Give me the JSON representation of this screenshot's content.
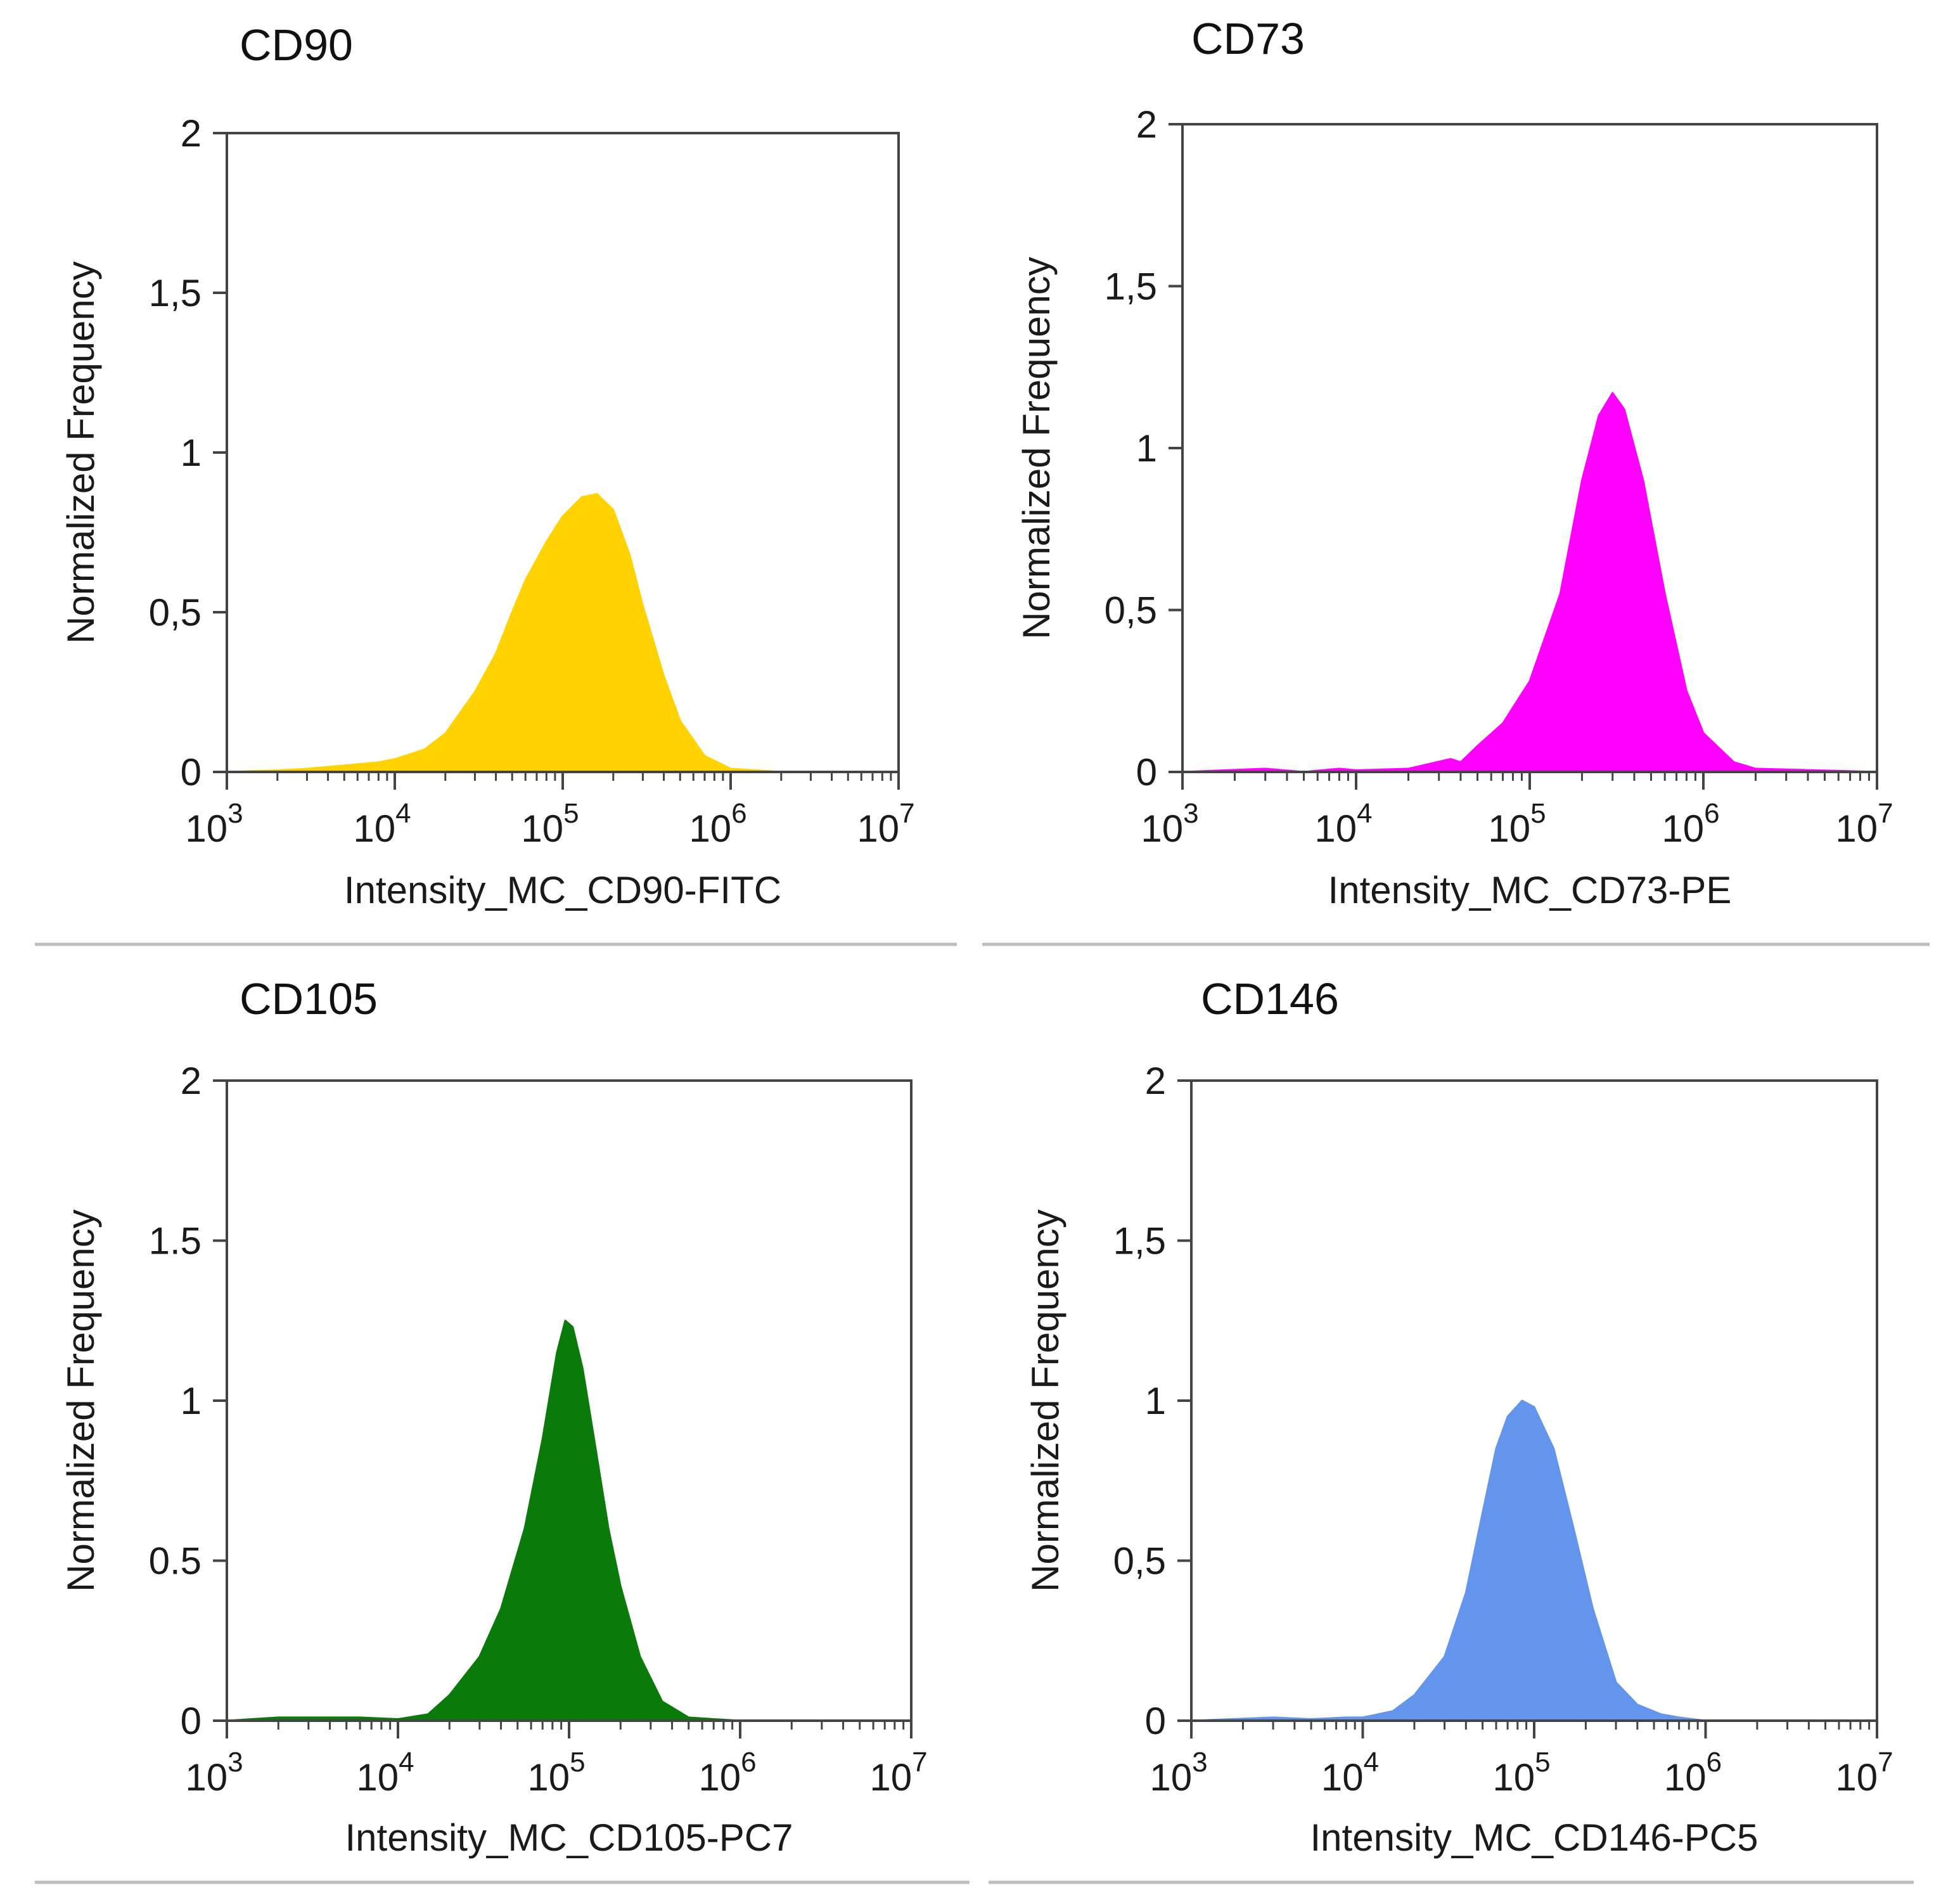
{
  "chart_data": [
    {
      "type": "area",
      "title": "CD90",
      "xlabel": "Intensity_MC_CD90-FITC",
      "ylabel": "Normalized Frequency",
      "x_scale": "log",
      "xlim": [
        1000,
        10000000
      ],
      "ylim": [
        0,
        2
      ],
      "x_ticks": [
        {
          "base": "10",
          "exp": "3"
        },
        {
          "base": "10",
          "exp": "4"
        },
        {
          "base": "10",
          "exp": "5"
        },
        {
          "base": "10",
          "exp": "6"
        },
        {
          "base": "10",
          "exp": "7"
        }
      ],
      "y_ticks": [
        "0",
        "0,5",
        "1",
        "1,5",
        "2"
      ],
      "color": "#FFD200",
      "grid": false,
      "x": [
        1000,
        2000,
        3000,
        5000,
        8000,
        10000,
        15000,
        20000,
        30000,
        40000,
        50000,
        60000,
        80000,
        100000,
        130000,
        160000,
        200000,
        250000,
        300000,
        400000,
        500000,
        700000,
        1000000,
        2000000,
        10000000
      ],
      "y": [
        0.0,
        0.005,
        0.01,
        0.02,
        0.03,
        0.04,
        0.07,
        0.12,
        0.25,
        0.37,
        0.5,
        0.6,
        0.72,
        0.8,
        0.86,
        0.87,
        0.82,
        0.68,
        0.52,
        0.3,
        0.16,
        0.05,
        0.01,
        0.0,
        0.0
      ]
    },
    {
      "type": "area",
      "title": "CD73",
      "xlabel": "Intensity_MC_CD73-PE",
      "ylabel": "Normalized Frequency",
      "x_scale": "log",
      "xlim": [
        1000,
        10000000
      ],
      "ylim": [
        0,
        2
      ],
      "x_ticks": [
        {
          "base": "10",
          "exp": "3"
        },
        {
          "base": "10",
          "exp": "4"
        },
        {
          "base": "10",
          "exp": "5"
        },
        {
          "base": "10",
          "exp": "6"
        },
        {
          "base": "10",
          "exp": "7"
        }
      ],
      "y_ticks": [
        "0",
        "0,5",
        "1",
        "1,5",
        "2"
      ],
      "color": "#FF00FF",
      "grid": false,
      "x": [
        1000,
        3000,
        5000,
        8000,
        10000,
        20000,
        35000,
        40000,
        50000,
        70000,
        100000,
        150000,
        200000,
        250000,
        300000,
        350000,
        450000,
        600000,
        800000,
        1000000,
        1500000,
        2000000,
        10000000
      ],
      "y": [
        0.0,
        0.01,
        0.0,
        0.01,
        0.005,
        0.01,
        0.04,
        0.03,
        0.08,
        0.15,
        0.28,
        0.55,
        0.9,
        1.1,
        1.17,
        1.12,
        0.9,
        0.55,
        0.25,
        0.12,
        0.03,
        0.01,
        0.0
      ]
    },
    {
      "type": "area",
      "title": "CD105",
      "xlabel": "Intensity_MC_CD105-PC7",
      "ylabel": "Normalized Frequency",
      "x_scale": "log",
      "xlim": [
        1000,
        10000000
      ],
      "ylim": [
        0,
        2
      ],
      "x_ticks": [
        {
          "base": "10",
          "exp": "3"
        },
        {
          "base": "10",
          "exp": "4"
        },
        {
          "base": "10",
          "exp": "5"
        },
        {
          "base": "10",
          "exp": "6"
        },
        {
          "base": "10",
          "exp": "7"
        }
      ],
      "y_ticks": [
        "0",
        "0.5",
        "1",
        "1.5",
        "2"
      ],
      "color": "#0A7A0A",
      "grid": false,
      "x": [
        1000,
        2000,
        4000,
        6000,
        10000,
        15000,
        20000,
        30000,
        40000,
        55000,
        70000,
        85000,
        95000,
        105000,
        120000,
        140000,
        170000,
        200000,
        260000,
        350000,
        500000,
        700000,
        1000000,
        10000000
      ],
      "y": [
        0.0,
        0.01,
        0.01,
        0.01,
        0.005,
        0.02,
        0.08,
        0.2,
        0.35,
        0.6,
        0.88,
        1.15,
        1.25,
        1.23,
        1.1,
        0.88,
        0.6,
        0.42,
        0.2,
        0.06,
        0.01,
        0.005,
        0.0,
        0.0
      ]
    },
    {
      "type": "area",
      "title": "CD146",
      "xlabel": "Intensity_MC_CD146-PC5",
      "ylabel": "Normalized Frequency",
      "x_scale": "log",
      "xlim": [
        1000,
        10000000
      ],
      "ylim": [
        0,
        2
      ],
      "x_ticks": [
        {
          "base": "10",
          "exp": "3"
        },
        {
          "base": "10",
          "exp": "4"
        },
        {
          "base": "10",
          "exp": "5"
        },
        {
          "base": "10",
          "exp": "6"
        },
        {
          "base": "10",
          "exp": "7"
        }
      ],
      "y_ticks": [
        "0",
        "0,5",
        "1",
        "1,5",
        "2"
      ],
      "color": "#6495ED",
      "grid": false,
      "x": [
        1000,
        3000,
        5000,
        8000,
        10000,
        15000,
        20000,
        30000,
        40000,
        50000,
        60000,
        70000,
        85000,
        100000,
        130000,
        170000,
        220000,
        300000,
        400000,
        550000,
        700000,
        1000000,
        10000000
      ],
      "y": [
        0.0,
        0.01,
        0.005,
        0.01,
        0.01,
        0.03,
        0.08,
        0.2,
        0.4,
        0.65,
        0.85,
        0.95,
        1.0,
        0.98,
        0.85,
        0.6,
        0.35,
        0.12,
        0.05,
        0.02,
        0.01,
        0.0,
        0.0
      ]
    }
  ]
}
